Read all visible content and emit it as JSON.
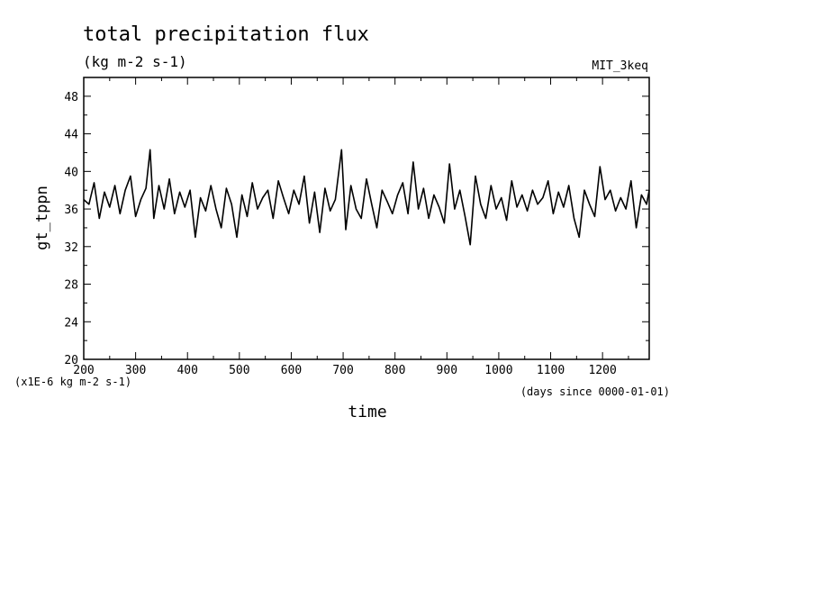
{
  "chart_data": {
    "type": "line",
    "title": "total precipitation flux",
    "subtitle": "(kg m-2 s-1)",
    "run_label": "MIT_3keq",
    "ylabel": "gt_tppn",
    "xlabel": "time",
    "y_unit_note": "(x1E-6 kg m-2 s-1)",
    "x_unit_note": "(days since 0000-01-01)",
    "xlim": [
      200,
      1290
    ],
    "ylim": [
      20,
      50
    ],
    "x_ticks": [
      200,
      300,
      400,
      500,
      600,
      700,
      800,
      900,
      1000,
      1100,
      1200
    ],
    "x_tick_labels": [
      "200",
      "300",
      "400",
      "500",
      "600",
      "700",
      "800",
      "900",
      "1000",
      "1100",
      "1200"
    ],
    "y_ticks": [
      20,
      24,
      28,
      32,
      36,
      40,
      44,
      48
    ],
    "y_tick_labels": [
      "20",
      "24",
      "28",
      "32",
      "36",
      "40",
      "44",
      "48"
    ],
    "grid": false,
    "series": [
      {
        "x": [
          200,
          210,
          220,
          230,
          240,
          250,
          260,
          270,
          280,
          290,
          300,
          310,
          320,
          328,
          335,
          345,
          355,
          365,
          375,
          385,
          395,
          405,
          415,
          425,
          435,
          445,
          455,
          465,
          475,
          485,
          495,
          505,
          515,
          525,
          535,
          545,
          555,
          565,
          575,
          585,
          595,
          605,
          615,
          625,
          635,
          645,
          655,
          665,
          675,
          685,
          697,
          705,
          715,
          725,
          735,
          745,
          755,
          765,
          775,
          785,
          795,
          805,
          815,
          825,
          835,
          845,
          855,
          865,
          875,
          885,
          895,
          905,
          915,
          925,
          935,
          945,
          955,
          965,
          975,
          985,
          995,
          1005,
          1015,
          1025,
          1035,
          1045,
          1055,
          1065,
          1075,
          1085,
          1095,
          1105,
          1115,
          1125,
          1135,
          1145,
          1155,
          1165,
          1175,
          1185,
          1195,
          1205,
          1215,
          1225,
          1235,
          1245,
          1255,
          1265,
          1275,
          1285,
          1290
        ],
        "y": [
          37.0,
          36.5,
          38.8,
          35.0,
          37.8,
          36.2,
          38.5,
          35.5,
          38.0,
          39.5,
          35.2,
          37.0,
          38.2,
          42.3,
          35.0,
          38.5,
          36.0,
          39.2,
          35.5,
          37.8,
          36.2,
          38.0,
          33.0,
          37.2,
          35.8,
          38.5,
          36.0,
          34.0,
          38.2,
          36.5,
          33.0,
          37.5,
          35.2,
          38.8,
          36.0,
          37.2,
          38.0,
          35.0,
          39.0,
          37.2,
          35.5,
          38.0,
          36.5,
          39.5,
          34.5,
          37.8,
          33.5,
          38.2,
          35.8,
          37.0,
          42.3,
          33.8,
          38.5,
          36.0,
          35.0,
          39.2,
          36.5,
          34.0,
          38.0,
          36.8,
          35.5,
          37.5,
          38.8,
          35.5,
          41.0,
          36.0,
          38.2,
          35.0,
          37.5,
          36.2,
          34.5,
          40.8,
          36.0,
          38.0,
          35.2,
          32.2,
          39.5,
          36.5,
          35.0,
          38.5,
          36.0,
          37.2,
          34.8,
          39.0,
          36.2,
          37.5,
          35.8,
          38.0,
          36.5,
          37.2,
          39.0,
          35.5,
          37.8,
          36.2,
          38.5,
          35.0,
          33.0,
          38.0,
          36.5,
          35.2,
          40.5,
          37.0,
          38.0,
          35.8,
          37.2,
          36.0,
          39.0,
          34.0,
          37.5,
          36.5,
          38.0
        ]
      }
    ]
  }
}
